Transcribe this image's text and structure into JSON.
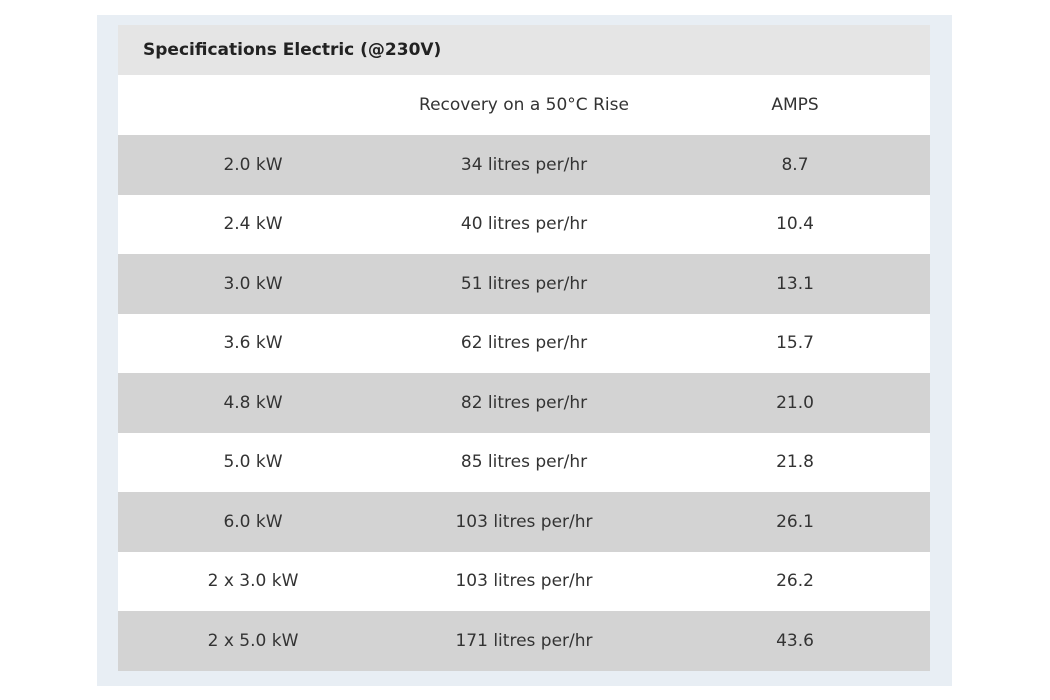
{
  "table": {
    "title": "Specifications Electric (@230V)",
    "headers": [
      "",
      "Recovery on a 50°C Rise",
      "AMPS"
    ],
    "rows": [
      [
        "2.0 kW",
        "34 litres per/hr",
        "8.7"
      ],
      [
        "2.4 kW",
        "40 litres per/hr",
        "10.4"
      ],
      [
        "3.0 kW",
        "51 litres per/hr",
        "13.1"
      ],
      [
        "3.6 kW",
        "62 litres per/hr",
        "15.7"
      ],
      [
        "4.8 kW",
        "82 litres per/hr",
        "21.0"
      ],
      [
        "5.0 kW",
        "85 litres per/hr",
        "21.8"
      ],
      [
        "6.0 kW",
        "103 litres per/hr",
        "26.1"
      ],
      [
        "2 x 3.0 kW",
        "103 litres per/hr",
        "26.2"
      ],
      [
        "2 x 5.0 kW",
        "171 litres per/hr",
        "43.6"
      ]
    ]
  }
}
